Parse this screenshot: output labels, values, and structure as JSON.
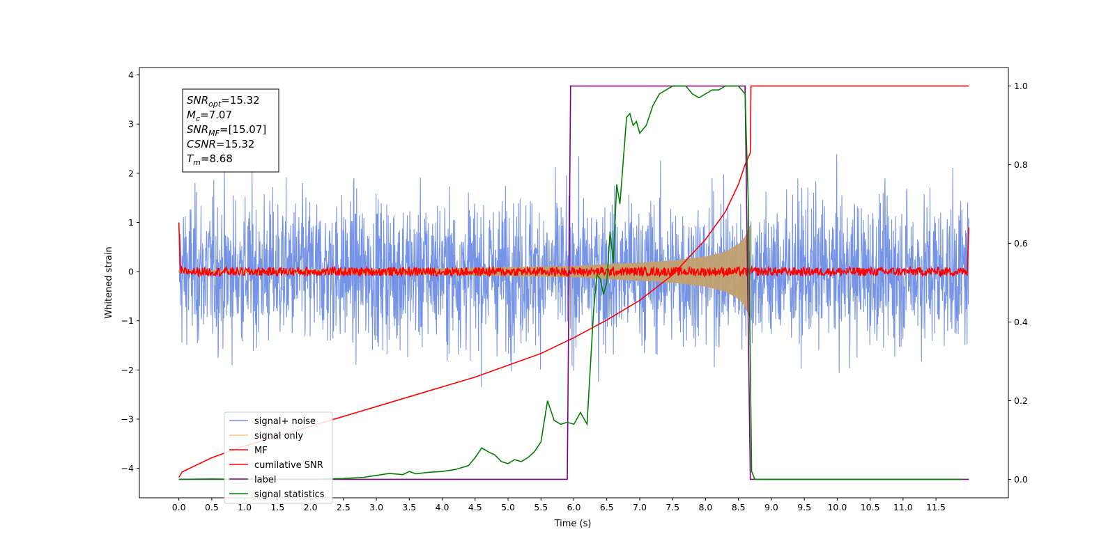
{
  "chart_data": {
    "type": "line",
    "xlabel": "Time (s)",
    "ylabel": "Whitened strain",
    "x_range": [
      -0.6,
      12.6
    ],
    "y_left_range": [
      -4.6,
      4.15
    ],
    "y_right_range": [
      -0.047,
      1.047
    ],
    "x_ticks": [
      "0.0",
      "0.5",
      "1.0",
      "1.5",
      "2.0",
      "2.5",
      "3.0",
      "3.5",
      "4.0",
      "4.5",
      "5.0",
      "5.5",
      "6.0",
      "6.5",
      "7.0",
      "7.5",
      "8.0",
      "8.5",
      "9.0",
      "9.5",
      "10.0",
      "10.5",
      "11.0",
      "11.5"
    ],
    "y_left_ticks": [
      "4",
      "3",
      "2",
      "1",
      "0",
      "−1",
      "−2",
      "−3",
      "−4"
    ],
    "y_right_ticks": [
      "0.0",
      "0.2",
      "0.4",
      "0.6",
      "0.8",
      "1.0"
    ],
    "grid": false,
    "legend_position": "lower-left",
    "stats_box": {
      "snr_opt": {
        "main": "SNR",
        "sub": "opt",
        "value": "=15.32"
      },
      "mc": {
        "main": "M",
        "sub": "c",
        "value": "=7.07"
      },
      "snr_mf": {
        "main": "SNR",
        "sub": "MF",
        "value": "=[15.07]"
      },
      "csnr": {
        "main": "CSNR",
        "sub": "",
        "value": "=15.32"
      },
      "tm": {
        "main": "T",
        "sub": "m",
        "value": "=8.68"
      }
    },
    "series": [
      {
        "name": "signal+ noise",
        "color": "#6f8ee6",
        "axis": "left",
        "x_range": [
          0.0,
          12.0
        ],
        "noise_amplitude": 3.8
      },
      {
        "name": "signal only",
        "color": "#ffc87a",
        "axis": "left",
        "envelope": [
          [
            0.0,
            0.02
          ],
          [
            4.0,
            0.06
          ],
          [
            6.0,
            0.11
          ],
          [
            7.0,
            0.18
          ],
          [
            7.5,
            0.22
          ],
          [
            8.0,
            0.3
          ],
          [
            8.3,
            0.4
          ],
          [
            8.5,
            0.55
          ],
          [
            8.6,
            0.7
          ],
          [
            8.68,
            0.95
          ]
        ]
      },
      {
        "name": "MF",
        "color": "#ff0000",
        "axis": "left",
        "level": 0.0,
        "noise_amplitude": 0.18
      },
      {
        "name": "cumilative SNR",
        "color": "#ff0000",
        "axis": "right",
        "x": [
          0.0,
          0.05,
          0.5,
          1.0,
          1.5,
          2.0,
          2.5,
          3.0,
          3.5,
          4.0,
          4.5,
          5.0,
          5.5,
          6.0,
          6.5,
          7.0,
          7.5,
          8.0,
          8.3,
          8.5,
          8.6,
          8.68,
          8.69,
          12.0
        ],
        "y": [
          0.005,
          0.019,
          0.055,
          0.085,
          0.11,
          0.135,
          0.16,
          0.185,
          0.21,
          0.235,
          0.26,
          0.29,
          0.32,
          0.36,
          0.405,
          0.455,
          0.52,
          0.61,
          0.68,
          0.75,
          0.8,
          0.83,
          1.0,
          1.0
        ]
      },
      {
        "name": "label",
        "color": "#800080",
        "axis": "right",
        "x": [
          0.0,
          5.9,
          5.95,
          8.6,
          8.68,
          12.0
        ],
        "y": [
          0.0,
          0.0,
          1.0,
          1.0,
          0.0,
          0.0
        ]
      },
      {
        "name": "signal statistics",
        "color": "#008000",
        "axis": "right",
        "x": [
          0.0,
          0.5,
          1.0,
          1.5,
          2.0,
          2.5,
          2.8,
          3.0,
          3.2,
          3.4,
          3.5,
          3.6,
          3.8,
          4.0,
          4.2,
          4.4,
          4.5,
          4.6,
          4.7,
          4.8,
          4.9,
          5.0,
          5.1,
          5.2,
          5.3,
          5.4,
          5.5,
          5.6,
          5.7,
          5.8,
          5.9,
          6.0,
          6.1,
          6.2,
          6.3,
          6.35,
          6.4,
          6.45,
          6.5,
          6.55,
          6.6,
          6.65,
          6.7,
          6.8,
          6.85,
          6.9,
          6.95,
          7.0,
          7.1,
          7.2,
          7.3,
          7.4,
          7.5,
          7.6,
          7.7,
          7.8,
          7.9,
          8.0,
          8.1,
          8.2,
          8.3,
          8.5,
          8.6,
          8.65,
          8.7,
          8.75,
          8.8,
          9.0,
          10.0,
          11.0,
          11.9
        ],
        "y": [
          0.0,
          0.001,
          0.0,
          0.0,
          0.0,
          0.002,
          0.005,
          0.01,
          0.015,
          0.012,
          0.02,
          0.014,
          0.018,
          0.02,
          0.025,
          0.035,
          0.055,
          0.08,
          0.07,
          0.062,
          0.045,
          0.04,
          0.05,
          0.045,
          0.055,
          0.07,
          0.095,
          0.2,
          0.15,
          0.14,
          0.145,
          0.14,
          0.17,
          0.14,
          0.43,
          0.52,
          0.51,
          0.47,
          0.5,
          0.63,
          0.55,
          0.75,
          0.7,
          0.92,
          0.93,
          0.9,
          0.91,
          0.88,
          0.9,
          0.95,
          0.98,
          0.99,
          1.0,
          1.0,
          1.0,
          0.98,
          0.97,
          0.98,
          0.99,
          0.99,
          1.0,
          1.0,
          0.98,
          0.7,
          0.02,
          0.0,
          0.0,
          0.0,
          0.0,
          0.0,
          0.0
        ]
      }
    ]
  }
}
